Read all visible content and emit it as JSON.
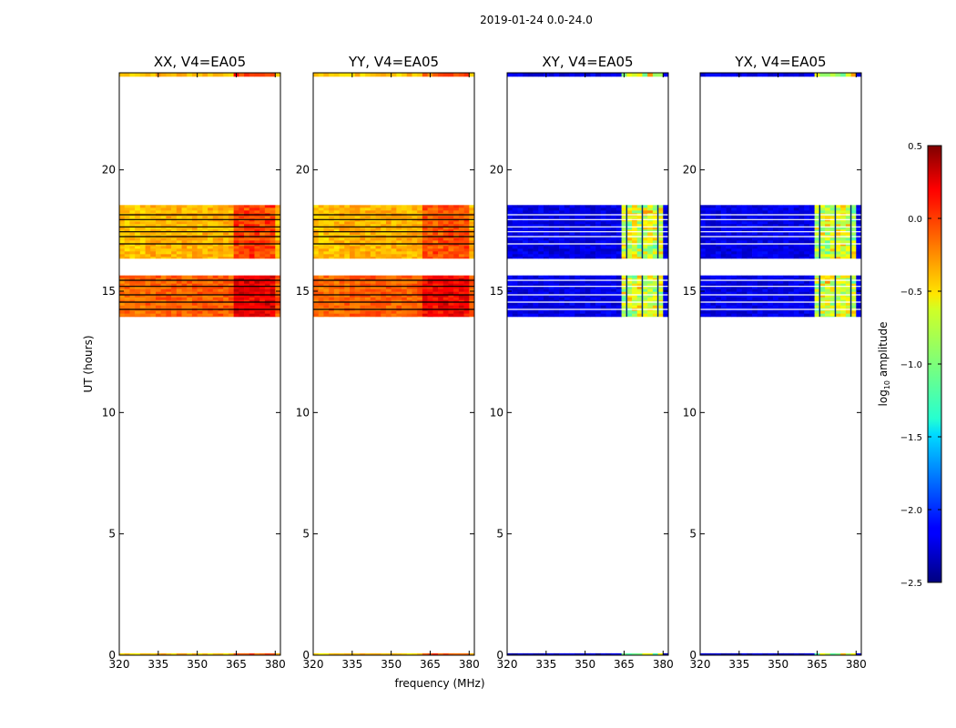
{
  "chart_data": {
    "type": "heatmap",
    "title": "2019-01-24 0.0-24.0",
    "xlabel": "frequency (MHz)",
    "ylabel": "UT (hours)",
    "xlim": [
      320,
      382
    ],
    "ylim": [
      0,
      24
    ],
    "x_ticks": [
      "320",
      "335",
      "350",
      "365",
      "380"
    ],
    "y_ticks": [
      "0",
      "5",
      "10",
      "15",
      "20"
    ],
    "colorbar": {
      "label_prefix": "log",
      "label_sub": "10",
      "label_suffix": " amplitude",
      "min": -2.5,
      "max": 0.5,
      "ticks": [
        "0.5",
        "0.0",
        "−0.5",
        "−1.0",
        "−1.5",
        "−2.0",
        "−2.5"
      ]
    },
    "panels": [
      {
        "title": "XX, V4=EA05",
        "bands": [
          {
            "t0": 23.85,
            "t1": 24.0,
            "base": -0.4
          },
          {
            "t0": 16.35,
            "t1": 18.55,
            "base": -0.4
          },
          {
            "t0": 13.95,
            "t1": 15.65,
            "base": -0.15
          },
          {
            "t0": 0.0,
            "t1": 0.08,
            "base": -0.45
          }
        ],
        "hot_band": {
          "f0": 364,
          "f1": 380,
          "boost": 0.35
        }
      },
      {
        "title": "YY, V4=EA05",
        "bands": [
          {
            "t0": 23.85,
            "t1": 24.0,
            "base": -0.45
          },
          {
            "t0": 16.35,
            "t1": 18.55,
            "base": -0.4
          },
          {
            "t0": 13.95,
            "t1": 15.65,
            "base": -0.15
          },
          {
            "t0": 0.0,
            "t1": 0.08,
            "base": -0.45
          }
        ],
        "hot_band": {
          "f0": 362,
          "f1": 380,
          "boost": 0.3
        }
      },
      {
        "title": "XY, V4=EA05",
        "bands": [
          {
            "t0": 23.85,
            "t1": 24.0,
            "base": -2.2
          },
          {
            "t0": 16.35,
            "t1": 18.55,
            "base": -2.2
          },
          {
            "t0": 13.95,
            "t1": 15.65,
            "base": -2.2
          },
          {
            "t0": 0.0,
            "t1": 0.08,
            "base": -2.3
          }
        ],
        "hot_band": {
          "f0": 363,
          "f1": 380,
          "boost": 1.5
        }
      },
      {
        "title": "YX, V4=EA05",
        "bands": [
          {
            "t0": 23.85,
            "t1": 24.0,
            "base": -2.2
          },
          {
            "t0": 16.35,
            "t1": 18.55,
            "base": -2.2
          },
          {
            "t0": 13.95,
            "t1": 15.65,
            "base": -2.2
          },
          {
            "t0": 0.0,
            "t1": 0.08,
            "base": -2.3
          }
        ],
        "hot_band": {
          "f0": 363,
          "f1": 380,
          "boost": 1.5
        }
      }
    ],
    "gap_lines_hours": [
      18.15,
      17.95,
      17.65,
      17.45,
      17.25,
      16.95,
      15.45,
      15.2,
      14.85,
      14.55,
      14.25
    ]
  }
}
